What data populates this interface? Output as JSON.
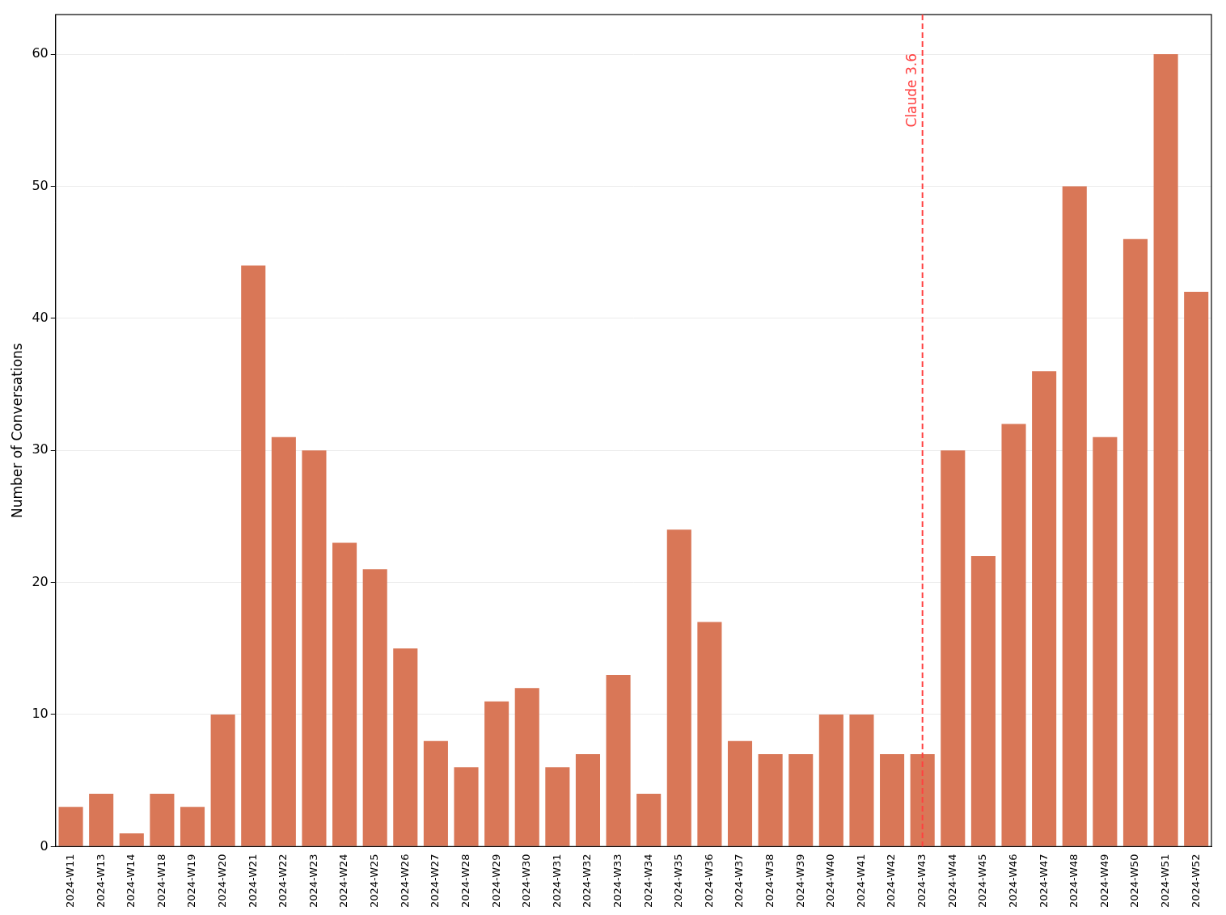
{
  "chart_data": {
    "type": "bar",
    "y_label": "Number of Conversations",
    "categories": [
      "2024-W11",
      "2024-W13",
      "2024-W14",
      "2024-W18",
      "2024-W19",
      "2024-W20",
      "2024-W21",
      "2024-W22",
      "2024-W23",
      "2024-W24",
      "2024-W25",
      "2024-W26",
      "2024-W27",
      "2024-W28",
      "2024-W29",
      "2024-W30",
      "2024-W31",
      "2024-W32",
      "2024-W33",
      "2024-W34",
      "2024-W35",
      "2024-W36",
      "2024-W37",
      "2024-W38",
      "2024-W39",
      "2024-W40",
      "2024-W41",
      "2024-W42",
      "2024-W43",
      "2024-W44",
      "2024-W45",
      "2024-W46",
      "2024-W47",
      "2024-W48",
      "2024-W49",
      "2024-W50",
      "2024-W51",
      "2024-W52"
    ],
    "values": [
      3,
      4,
      1,
      4,
      3,
      10,
      44,
      31,
      30,
      23,
      21,
      15,
      8,
      6,
      11,
      12,
      6,
      7,
      13,
      4,
      24,
      17,
      8,
      7,
      7,
      10,
      10,
      7,
      7,
      30,
      22,
      32,
      36,
      50,
      31,
      46,
      60,
      42
    ],
    "color": "#d97757",
    "ylim": [
      0,
      63
    ],
    "yticks": [
      0,
      10,
      20,
      30,
      40,
      50,
      60
    ],
    "grid": true,
    "annotations": [
      {
        "x": "2024-W43",
        "label": "Claude 3.6",
        "color": "#ff4040",
        "line_style": "dashed"
      }
    ]
  }
}
